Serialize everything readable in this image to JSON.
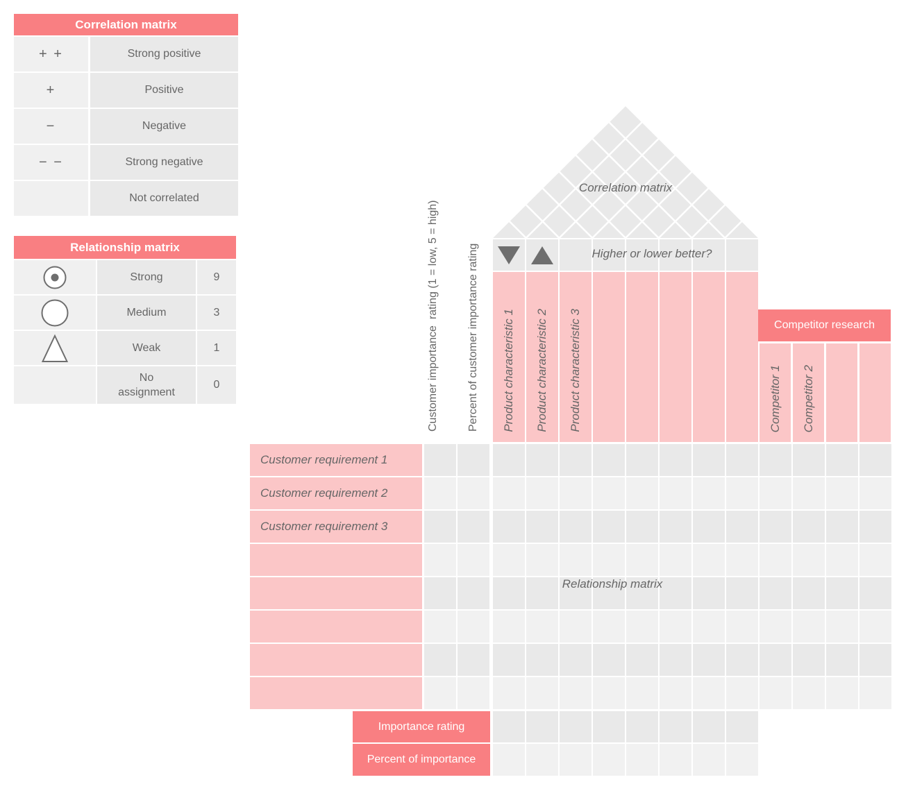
{
  "colors": {
    "accent_strong": "#F97F82",
    "accent_light": "#FBC6C7",
    "cell_dark": "#E9E9E9",
    "cell_light": "#F1F1F1",
    "legend_symbol_bg": "#F0F0F0",
    "text_gray": "#666666",
    "marker_gray": "#6E6E6E",
    "header_text": "#FFFFFF"
  },
  "correlation_legend": {
    "title": "Correlation matrix",
    "rows": [
      {
        "symbol": "+ +",
        "label": "Strong positive"
      },
      {
        "symbol": "+",
        "label": "Positive"
      },
      {
        "symbol": "−",
        "label": "Negative"
      },
      {
        "symbol": "− −",
        "label": "Strong negative"
      },
      {
        "symbol": "",
        "label": "Not correlated"
      }
    ]
  },
  "relationship_legend": {
    "title": "Relationship matrix",
    "rows": [
      {
        "symbol_icon": "strong-circle-dot-icon",
        "label": "Strong",
        "value": "9"
      },
      {
        "symbol_icon": "medium-circle-icon",
        "label": "Medium",
        "value": "3"
      },
      {
        "symbol_icon": "weak-triangle-icon",
        "label": "Weak",
        "value": "1"
      },
      {
        "symbol_icon": "",
        "label": "No assignment",
        "value": "0"
      }
    ]
  },
  "house": {
    "roof_label": "Correlation matrix",
    "direction_row_label": "Higher or lower better?",
    "direction_icons": [
      "lower-better-icon",
      "higher-better-icon"
    ],
    "axis_label_importance": "Customer importance  rating (1 = low, 5 = high)",
    "axis_label_percent": "Percent of customer importance rating",
    "product_characteristics": [
      "Product characteristic 1",
      "Product characteristic 2",
      "Product characteristic 3",
      "",
      "",
      "",
      "",
      ""
    ],
    "competitor_research_title": "Competitor research",
    "competitors": [
      "Competitor 1",
      "Competitor 2",
      "",
      ""
    ],
    "customer_requirements": [
      "Customer requirement 1",
      "Customer requirement 2",
      "Customer requirement 3",
      "",
      "",
      "",
      "",
      ""
    ],
    "center_label": "Relationship matrix",
    "importance_row_label": "Importance rating",
    "percent_row_label": "Percent of importance"
  }
}
